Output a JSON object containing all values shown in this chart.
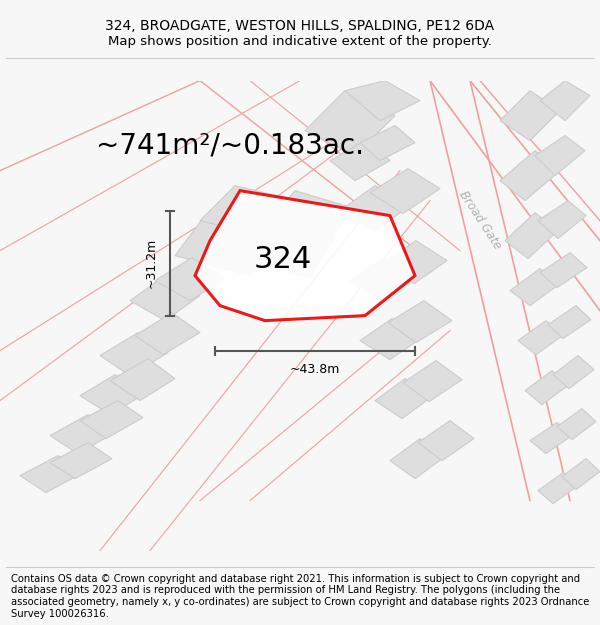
{
  "title_line1": "324, BROADGATE, WESTON HILLS, SPALDING, PE12 6DA",
  "title_line2": "Map shows position and indicative extent of the property.",
  "footer_text": "Contains OS data © Crown copyright and database right 2021. This information is subject to Crown copyright and database rights 2023 and is reproduced with the permission of HM Land Registry. The polygons (including the associated geometry, namely x, y co-ordinates) are subject to Crown copyright and database rights 2023 Ordnance Survey 100026316.",
  "area_text": "~741m²/~0.183ac.",
  "label_324": "324",
  "dim_width": "~43.8m",
  "dim_height": "~31.2m",
  "road_label": "Broad Gate",
  "bg_color": "#f7f7f7",
  "map_bg": "#ffffff",
  "building_fill": "#dedede",
  "building_edge": "#cccccc",
  "road_fill_color": "#f0f0f0",
  "road_line_color": "#f0a0a0",
  "highlight_color": "#ee0000",
  "dim_color": "#555555",
  "title_fontsize": 10,
  "footer_fontsize": 7.2,
  "area_fontsize": 20,
  "label_fontsize": 22
}
